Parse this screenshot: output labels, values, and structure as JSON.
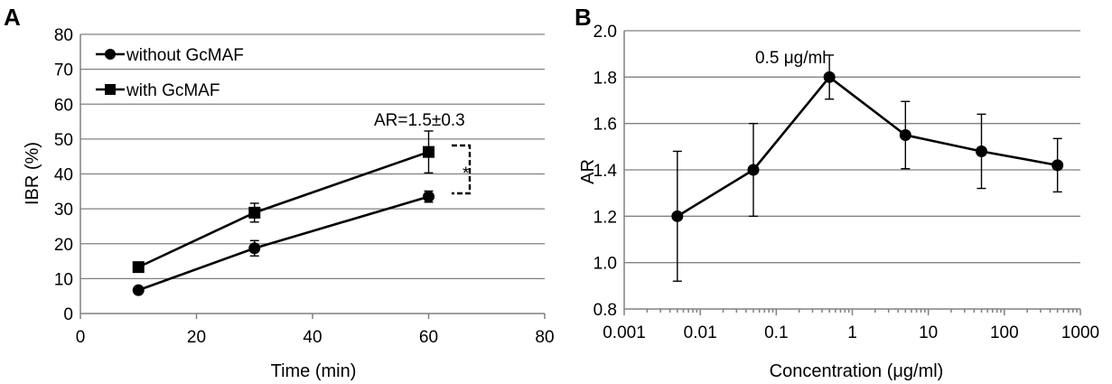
{
  "chart_data": [
    {
      "panel": "A",
      "type": "line",
      "xlabel": "Time (min)",
      "ylabel": "IBR (%)",
      "xlim": [
        0,
        80
      ],
      "ylim": [
        0,
        80
      ],
      "xticks": [
        "0",
        "20",
        "40",
        "60",
        "80"
      ],
      "yticks": [
        "0",
        "10",
        "20",
        "30",
        "40",
        "50",
        "60",
        "70",
        "80"
      ],
      "grid": "horizontal",
      "legend": "top-left",
      "series": [
        {
          "name": "without GcMAF",
          "marker": "circle",
          "x": [
            10,
            30,
            60
          ],
          "y": [
            6.7,
            18.7,
            33.5
          ],
          "err": [
            0.8,
            2.2,
            1.6
          ]
        },
        {
          "name": "with GcMAF",
          "marker": "square",
          "x": [
            10,
            30,
            60
          ],
          "y": [
            13.3,
            28.9,
            46.3
          ],
          "err": [
            0.8,
            2.7,
            6.0
          ]
        }
      ],
      "annotations": [
        "AR=1.5±0.3",
        "*"
      ]
    },
    {
      "panel": "B",
      "type": "line",
      "xlabel": "Concentration (μg/ml)",
      "ylabel": "AR",
      "xscale": "log",
      "xlim": [
        0.001,
        1000
      ],
      "ylim": [
        0.8,
        2.0
      ],
      "xticks": [
        "0.001",
        "0.01",
        "0.1",
        "1",
        "10",
        "100",
        "1000"
      ],
      "yticks": [
        "0.8",
        "1.0",
        "1.2",
        "1.4",
        "1.6",
        "1.8",
        "2.0"
      ],
      "grid": "horizontal",
      "series": [
        {
          "marker": "circle",
          "x": [
            0.005,
            0.05,
            0.5,
            5,
            50,
            500
          ],
          "y": [
            1.2,
            1.4,
            1.8,
            1.55,
            1.48,
            1.42
          ],
          "err": [
            0.28,
            0.2,
            0.095,
            0.145,
            0.16,
            0.115
          ]
        }
      ],
      "annotations": [
        "0.5 μg/ml"
      ]
    }
  ]
}
